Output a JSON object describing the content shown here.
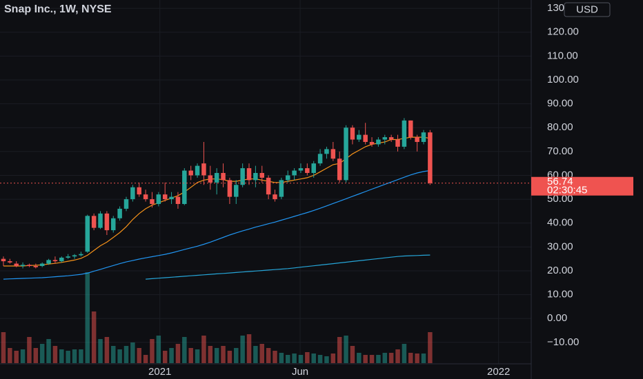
{
  "chart_data": {
    "type": "candlestick",
    "title": "Snap Inc., 1W, NYSE",
    "currency": "USD",
    "countdown": "02:30:45",
    "up_color": "#26a69a",
    "down_color": "#ef5350",
    "xlim": [
      -0.53,
      81.65
    ],
    "xticks": [
      {
        "value": 24.2,
        "label": "2021"
      },
      {
        "value": 45.9,
        "label": "Jun"
      },
      {
        "value": 76.6,
        "label": "2022"
      }
    ],
    "ylim": [
      -16.7,
      133.5
    ],
    "yticks": [
      {
        "value": -10,
        "label": "−10.00"
      },
      {
        "value": 0,
        "label": "0.00"
      },
      {
        "value": 10,
        "label": "10.00"
      },
      {
        "value": 20,
        "label": "20.00"
      },
      {
        "value": 30,
        "label": "30.00"
      },
      {
        "value": 40,
        "label": "40.00"
      },
      {
        "value": 50,
        "label": "50.00"
      },
      {
        "value": 60,
        "label": "60.00"
      },
      {
        "value": 70,
        "label": "70.00"
      },
      {
        "value": 80,
        "label": "80.00"
      },
      {
        "value": 90,
        "label": "90.00"
      },
      {
        "value": 100,
        "label": "100.00"
      },
      {
        "value": 110,
        "label": "110.00"
      },
      {
        "value": 120,
        "label": "120.00"
      },
      {
        "value": 130,
        "label": "130.00"
      }
    ],
    "open": [
      25,
      24,
      23,
      22,
      22.5,
      22,
      22,
      23,
      24.5,
      24,
      25.5,
      26,
      26.5,
      28,
      43,
      38,
      44,
      37,
      42,
      46,
      50,
      55,
      52,
      50,
      48,
      52,
      50,
      51,
      48,
      62,
      60,
      65,
      60,
      57,
      61,
      58,
      51,
      56,
      63,
      58,
      61,
      59,
      52,
      51,
      58,
      60,
      62,
      63,
      61,
      65,
      69,
      71,
      67,
      58,
      80,
      75,
      77,
      74,
      73,
      75,
      76,
      75,
      72,
      83,
      76,
      74,
      78
    ],
    "high": [
      26,
      25,
      24,
      23.5,
      23,
      23,
      23.5,
      25,
      26,
      26,
      27,
      27,
      28,
      43.5,
      44,
      45,
      45,
      43,
      47,
      51,
      56,
      57,
      54,
      53,
      53,
      57,
      53,
      53,
      63,
      64,
      65,
      74,
      64,
      63,
      65,
      59,
      58,
      65,
      65,
      64,
      64,
      60,
      54,
      59,
      62,
      63,
      65,
      65,
      66,
      71,
      72,
      74,
      70,
      81,
      81,
      79,
      82,
      76,
      76,
      77,
      77,
      77,
      84,
      83,
      77,
      79,
      79
    ],
    "low": [
      22,
      23,
      21.5,
      21,
      21.5,
      21,
      21.5,
      22.5,
      23,
      23.5,
      25,
      25,
      26,
      27.5,
      37,
      37.5,
      35,
      36,
      41,
      45,
      49,
      51,
      49,
      46.5,
      47,
      49,
      48,
      46,
      47.5,
      58,
      59,
      56,
      54,
      52,
      55,
      48,
      48,
      55,
      56,
      55,
      57,
      50,
      49,
      50,
      57,
      58,
      61,
      60,
      59,
      64,
      67,
      66,
      57,
      57,
      73,
      74,
      73,
      72,
      72,
      73,
      74,
      70,
      71,
      75,
      70,
      73,
      56
    ],
    "close": [
      24,
      23.5,
      22,
      22.5,
      22,
      21.5,
      23,
      24.5,
      24,
      25.5,
      26,
      26.5,
      27,
      43,
      38,
      44,
      37,
      42,
      46,
      50,
      55,
      52,
      50,
      48,
      52,
      50,
      51,
      48,
      62,
      60,
      64,
      60,
      57,
      61,
      58,
      51,
      56,
      63,
      58,
      61,
      59,
      52,
      50,
      58,
      60,
      62,
      63,
      61,
      65,
      69,
      71,
      67,
      58,
      80,
      75,
      77,
      74,
      73,
      75,
      76,
      75,
      72,
      83,
      76,
      74,
      78,
      56.74
    ],
    "volume": [
      45,
      22,
      18,
      20,
      38,
      22,
      28,
      35,
      25,
      20,
      18,
      20,
      20,
      132,
      75,
      35,
      38,
      25,
      20,
      25,
      30,
      22,
      12,
      35,
      40,
      18,
      22,
      28,
      38,
      22,
      20,
      40,
      25,
      22,
      25,
      18,
      22,
      40,
      42,
      25,
      28,
      22,
      18,
      15,
      12,
      14,
      12,
      16,
      14,
      12,
      10,
      14,
      38,
      40,
      25,
      15,
      12,
      12,
      12,
      15,
      15,
      20,
      28,
      15,
      14,
      14,
      45
    ],
    "moving_averages": [
      {
        "color": "#f7931a",
        "values": [
          22,
          22,
          22,
          22,
          22.2,
          22.3,
          22.5,
          22.8,
          23.1,
          23.5,
          24,
          24.5,
          25.2,
          26.5,
          28.5,
          30.5,
          32,
          34,
          36,
          38.5,
          41.5,
          44,
          46,
          47.5,
          48.5,
          49.5,
          50.5,
          51.5,
          53,
          55,
          57,
          58,
          58.5,
          58.5,
          58.2,
          57.5,
          57.5,
          58,
          58.5,
          58.5,
          58,
          57.5,
          57,
          57,
          57.5,
          58,
          58.5,
          59,
          60,
          61.5,
          63,
          64.5,
          65,
          67,
          69,
          70.5,
          72,
          73,
          73.5,
          74,
          75,
          75,
          75.5,
          76,
          76,
          76,
          75.5
        ]
      },
      {
        "color": "#2196f3",
        "values": [
          16.5,
          16.6,
          16.7,
          16.8,
          16.9,
          17,
          17.1,
          17.3,
          17.5,
          17.7,
          17.9,
          18.2,
          18.5,
          19,
          19.8,
          20.6,
          21.4,
          22.2,
          23,
          23.7,
          24.3,
          24.9,
          25.4,
          25.9,
          26.4,
          26.9,
          27.5,
          28.2,
          28.9,
          29.6,
          30.3,
          31.1,
          32,
          33,
          34,
          35,
          35.9,
          36.7,
          37.5,
          38.3,
          39,
          39.7,
          40.4,
          41.2,
          42,
          42.8,
          43.6,
          44.4,
          45.3,
          46.2,
          47.2,
          48.2,
          49.2,
          50.2,
          51.2,
          52.2,
          53.2,
          54.2,
          55.2,
          56.2,
          57.2,
          58.2,
          59.2,
          60.2,
          61,
          61.6,
          62
        ]
      },
      {
        "color": "#26a6d9",
        "values": [
          null,
          null,
          null,
          null,
          null,
          null,
          null,
          null,
          null,
          null,
          null,
          null,
          null,
          null,
          null,
          null,
          null,
          null,
          null,
          null,
          null,
          null,
          16.5,
          16.7,
          16.9,
          17.1,
          17.3,
          17.5,
          17.7,
          17.9,
          18.1,
          18.3,
          18.5,
          18.7,
          18.9,
          19.1,
          19.3,
          19.5,
          19.7,
          19.9,
          20.1,
          20.3,
          20.5,
          20.7,
          20.9,
          21.2,
          21.5,
          21.8,
          22.1,
          22.4,
          22.7,
          23,
          23.3,
          23.6,
          23.9,
          24.2,
          24.5,
          24.8,
          25.1,
          25.4,
          25.7,
          26,
          26.2,
          26.3,
          26.4,
          26.5,
          26.6
        ]
      }
    ]
  }
}
